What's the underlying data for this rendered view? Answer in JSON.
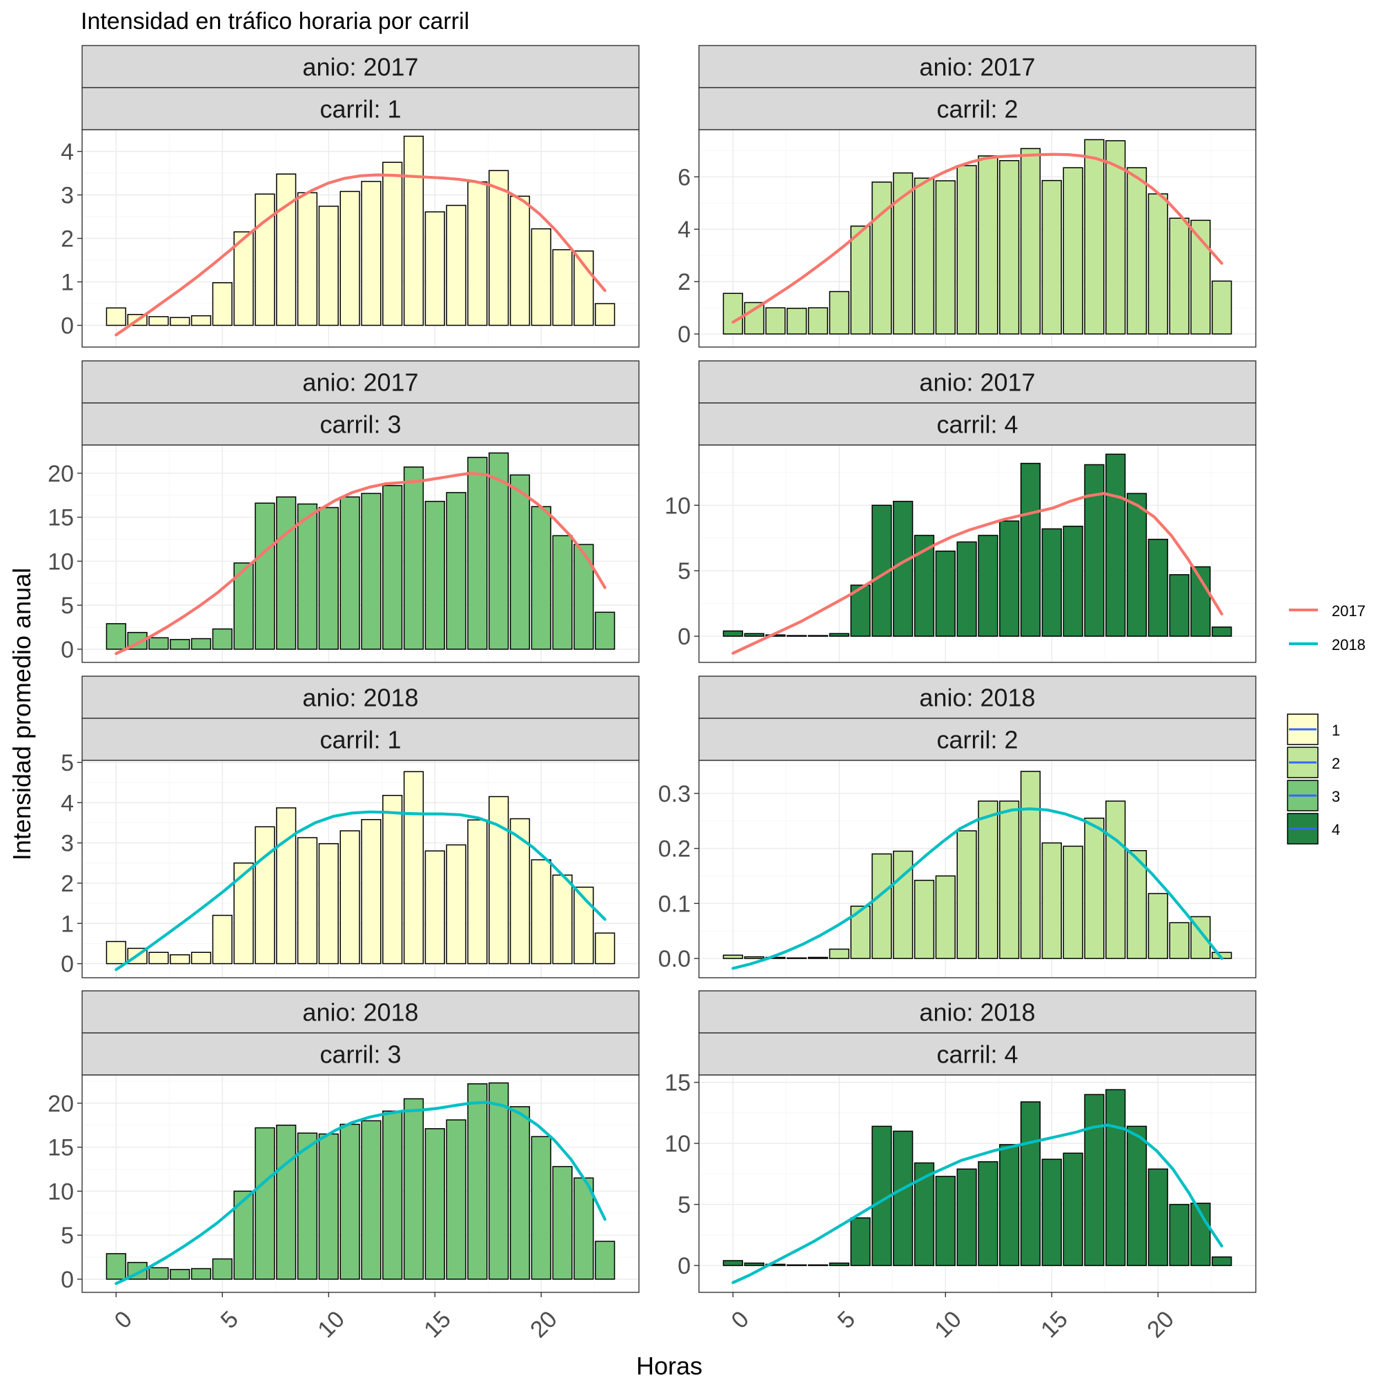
{
  "title": "Intensidad en tráfico horaria por carril",
  "xlabel": "Horas",
  "ylabel": "Intensidad promedio anual",
  "colors": {
    "fill": {
      "1": "#FFFFCC",
      "2": "#C2E699",
      "3": "#78C679",
      "4": "#238443"
    },
    "line": {
      "2017": "#F8766D",
      "2018": "#00BFC4"
    },
    "legend_fill_line": "#3366FF",
    "strip_bg": "#D9D9D9",
    "border": "#333333",
    "grid": "#EBEBEB"
  },
  "legend": {
    "line": {
      "entries": [
        "2017",
        "2018"
      ]
    },
    "fill": {
      "entries": [
        "1",
        "2",
        "3",
        "4"
      ]
    }
  },
  "chart_data": [
    {
      "type": "bar",
      "strip_top": "anio: 2017",
      "strip_bottom": "carril: 1",
      "carril": "1",
      "anio": "2017",
      "x": [
        0,
        1,
        2,
        3,
        4,
        5,
        6,
        7,
        8,
        9,
        10,
        11,
        12,
        13,
        14,
        15,
        16,
        17,
        18,
        19,
        20,
        21,
        22,
        23
      ],
      "values": [
        0.4,
        0.25,
        0.2,
        0.18,
        0.22,
        0.98,
        2.15,
        3.02,
        3.48,
        3.05,
        2.74,
        3.08,
        3.31,
        3.75,
        4.35,
        2.61,
        2.76,
        3.3,
        3.56,
        2.97,
        2.22,
        1.74,
        1.71,
        0.5
      ],
      "smooth": [
        -0.22,
        0.04,
        0.3,
        0.57,
        0.84,
        1.12,
        1.42,
        1.73,
        2.05,
        2.36,
        2.64,
        2.89,
        3.1,
        3.27,
        3.38,
        3.44,
        3.46,
        3.45,
        3.43,
        3.41,
        3.39,
        3.36,
        3.31,
        3.22,
        3.08,
        2.86,
        2.56,
        2.18,
        1.73,
        1.25,
        0.8
      ],
      "smooth_x": [
        0,
        0.77,
        1.53,
        2.3,
        3.07,
        3.83,
        4.6,
        5.37,
        6.13,
        6.9,
        7.67,
        8.43,
        9.2,
        9.97,
        10.73,
        11.5,
        12.27,
        13.03,
        13.8,
        14.57,
        15.33,
        16.1,
        16.87,
        17.63,
        18.4,
        19.17,
        19.93,
        20.7,
        21.47,
        22.23,
        23
      ],
      "smooth_series": "2017",
      "ylim": [
        -0.5,
        4.5
      ],
      "yticks": [
        0,
        1,
        2,
        3,
        4
      ],
      "ytick_labels": [
        "0",
        "1",
        "2",
        "3",
        "4"
      ]
    },
    {
      "type": "bar",
      "strip_top": "anio: 2017",
      "strip_bottom": "carril: 2",
      "carril": "2",
      "anio": "2017",
      "x": [
        0,
        1,
        2,
        3,
        4,
        5,
        6,
        7,
        8,
        9,
        10,
        11,
        12,
        13,
        14,
        15,
        16,
        17,
        18,
        19,
        20,
        21,
        22,
        23
      ],
      "values": [
        1.55,
        1.2,
        1.0,
        0.98,
        1.0,
        1.62,
        4.12,
        5.8,
        6.15,
        5.95,
        5.85,
        6.43,
        6.8,
        6.62,
        7.08,
        5.86,
        6.35,
        7.42,
        7.38,
        6.35,
        5.35,
        4.42,
        4.34,
        2.02
      ],
      "smooth": [
        0.45,
        0.77,
        1.1,
        1.45,
        1.8,
        2.17,
        2.56,
        2.96,
        3.38,
        3.83,
        4.3,
        4.76,
        5.18,
        5.56,
        5.88,
        6.15,
        6.38,
        6.56,
        6.7,
        6.77,
        6.8,
        6.82,
        6.85,
        6.86,
        6.85,
        6.8,
        6.7,
        6.53,
        6.28,
        5.95,
        5.58,
        5.12,
        4.55,
        3.9,
        3.3,
        2.7
      ],
      "smooth_x": [
        0,
        0.66,
        1.31,
        1.97,
        2.63,
        3.29,
        3.94,
        4.6,
        5.26,
        5.91,
        6.57,
        7.23,
        7.89,
        8.54,
        9.2,
        9.86,
        10.51,
        11.17,
        11.83,
        12.49,
        13.14,
        13.8,
        14.46,
        15.11,
        15.77,
        16.43,
        17.09,
        17.74,
        18.4,
        19.06,
        19.71,
        20.37,
        21.03,
        21.69,
        22.34,
        23
      ],
      "smooth_series": "2017",
      "ylim": [
        -0.5,
        7.8
      ],
      "yticks": [
        0,
        2,
        4,
        6
      ],
      "ytick_labels": [
        "0",
        "2",
        "4",
        "6"
      ]
    },
    {
      "type": "bar",
      "strip_top": "anio: 2017",
      "strip_bottom": "carril: 3",
      "carril": "3",
      "anio": "2017",
      "x": [
        0,
        1,
        2,
        3,
        4,
        5,
        6,
        7,
        8,
        9,
        10,
        11,
        12,
        13,
        14,
        15,
        16,
        17,
        18,
        19,
        20,
        21,
        22,
        23
      ],
      "values": [
        2.9,
        1.9,
        1.3,
        1.1,
        1.2,
        2.3,
        9.8,
        16.6,
        17.3,
        16.5,
        16.1,
        17.3,
        17.7,
        18.6,
        20.7,
        16.8,
        17.8,
        21.8,
        22.3,
        19.8,
        16.2,
        12.9,
        11.9,
        4.2
      ],
      "smooth": [
        -0.5,
        0.4,
        1.4,
        2.5,
        3.7,
        5.0,
        6.4,
        8.0,
        9.7,
        11.4,
        13.0,
        14.5,
        15.8,
        16.9,
        17.8,
        18.4,
        18.8,
        18.95,
        19.1,
        19.4,
        19.7,
        20.0,
        19.8,
        19.0,
        17.9,
        16.5,
        14.8,
        12.8,
        10.2,
        7.0
      ],
      "smooth_x": [
        0,
        0.79,
        1.59,
        2.38,
        3.17,
        3.97,
        4.76,
        5.55,
        6.34,
        7.14,
        7.93,
        8.72,
        9.52,
        10.31,
        11.1,
        11.9,
        12.69,
        13.48,
        14.28,
        15.07,
        15.86,
        16.66,
        17.45,
        18.24,
        19.03,
        19.83,
        20.62,
        21.41,
        22.21,
        23
      ],
      "smooth_series": "2017",
      "ylim": [
        -1.5,
        23.2
      ],
      "yticks": [
        0,
        5,
        10,
        15,
        20
      ],
      "ytick_labels": [
        "0",
        "5",
        "10",
        "15",
        "20"
      ]
    },
    {
      "type": "bar",
      "strip_top": "anio: 2017",
      "strip_bottom": "carril: 4",
      "carril": "4",
      "anio": "2017",
      "x": [
        0,
        1,
        2,
        3,
        4,
        5,
        6,
        7,
        8,
        9,
        10,
        11,
        12,
        13,
        14,
        15,
        16,
        17,
        18,
        19,
        20,
        21,
        22,
        23
      ],
      "values": [
        0.4,
        0.2,
        0.1,
        0.05,
        0.05,
        0.2,
        3.9,
        10.0,
        10.3,
        7.7,
        6.5,
        7.2,
        7.7,
        8.8,
        13.2,
        8.2,
        8.4,
        13.1,
        13.9,
        10.9,
        7.4,
        4.7,
        5.3,
        0.7
      ],
      "smooth": [
        -1.3,
        -0.7,
        -0.1,
        0.5,
        1.1,
        1.8,
        2.5,
        3.2,
        4.0,
        4.8,
        5.6,
        6.3,
        7.0,
        7.6,
        8.1,
        8.5,
        8.9,
        9.2,
        9.5,
        9.8,
        10.3,
        10.7,
        10.9,
        10.6,
        10.0,
        9.1,
        7.7,
        5.9,
        3.8,
        1.7
      ],
      "smooth_x": [
        0,
        0.79,
        1.59,
        2.38,
        3.17,
        3.97,
        4.76,
        5.55,
        6.34,
        7.14,
        7.93,
        8.72,
        9.52,
        10.31,
        11.1,
        11.9,
        12.69,
        13.48,
        14.28,
        15.07,
        15.86,
        16.66,
        17.45,
        18.24,
        19.03,
        19.83,
        20.62,
        21.41,
        22.21,
        23
      ],
      "smooth_series": "2017",
      "ylim": [
        -2.0,
        14.6
      ],
      "yticks": [
        0,
        5,
        10
      ],
      "ytick_labels": [
        "0",
        "5",
        "10"
      ]
    },
    {
      "type": "bar",
      "strip_top": "anio: 2018",
      "strip_bottom": "carril: 1",
      "carril": "1",
      "anio": "2018",
      "x": [
        0,
        1,
        2,
        3,
        4,
        5,
        6,
        7,
        8,
        9,
        10,
        11,
        12,
        13,
        14,
        15,
        16,
        17,
        18,
        19,
        20,
        21,
        22,
        23
      ],
      "values": [
        0.55,
        0.38,
        0.28,
        0.22,
        0.28,
        1.2,
        2.5,
        3.4,
        3.87,
        3.13,
        2.98,
        3.3,
        3.58,
        4.18,
        4.77,
        2.8,
        2.95,
        3.57,
        4.15,
        3.6,
        2.58,
        2.2,
        1.9,
        0.76
      ],
      "smooth": [
        -0.15,
        0.15,
        0.47,
        0.8,
        1.13,
        1.47,
        1.82,
        2.2,
        2.58,
        2.94,
        3.26,
        3.5,
        3.66,
        3.74,
        3.77,
        3.76,
        3.73,
        3.72,
        3.72,
        3.7,
        3.62,
        3.46,
        3.22,
        2.9,
        2.5,
        2.04,
        1.55,
        1.1
      ],
      "smooth_x": [
        0,
        0.85,
        1.7,
        2.56,
        3.41,
        4.26,
        5.11,
        5.96,
        6.81,
        7.67,
        8.52,
        9.37,
        10.22,
        11.07,
        11.93,
        12.78,
        13.63,
        14.48,
        15.33,
        16.19,
        17.04,
        17.89,
        18.74,
        19.59,
        20.44,
        21.3,
        22.15,
        23
      ],
      "smooth_series": "2018",
      "ylim": [
        -0.35,
        5.05
      ],
      "yticks": [
        0,
        1,
        2,
        3,
        4,
        5
      ],
      "ytick_labels": [
        "0",
        "1",
        "2",
        "3",
        "4",
        "5"
      ]
    },
    {
      "type": "bar",
      "strip_top": "anio: 2018",
      "strip_bottom": "carril: 2",
      "carril": "2",
      "anio": "2018",
      "x": [
        0,
        1,
        2,
        3,
        4,
        5,
        6,
        7,
        8,
        9,
        10,
        11,
        12,
        13,
        14,
        15,
        16,
        17,
        18,
        19,
        20,
        21,
        22,
        23
      ],
      "values": [
        0.006,
        0.003,
        0.002,
        0.001,
        0.002,
        0.017,
        0.095,
        0.19,
        0.195,
        0.142,
        0.15,
        0.232,
        0.286,
        0.286,
        0.34,
        0.21,
        0.204,
        0.255,
        0.286,
        0.196,
        0.118,
        0.065,
        0.076,
        0.011
      ],
      "smooth": [
        -0.018,
        -0.01,
        0.0,
        0.012,
        0.026,
        0.042,
        0.06,
        0.08,
        0.104,
        0.13,
        0.158,
        0.186,
        0.212,
        0.236,
        0.252,
        0.262,
        0.27,
        0.272,
        0.27,
        0.263,
        0.252,
        0.236,
        0.214,
        0.186,
        0.154,
        0.118,
        0.08,
        0.04,
        0.0
      ],
      "smooth_x": [
        0,
        0.82,
        1.64,
        2.46,
        3.29,
        4.11,
        4.93,
        5.75,
        6.57,
        7.39,
        8.21,
        9.04,
        9.86,
        10.68,
        11.5,
        12.32,
        13.14,
        13.96,
        14.79,
        15.61,
        16.43,
        17.25,
        18.07,
        18.89,
        19.71,
        20.54,
        21.36,
        22.18,
        23
      ],
      "smooth_series": "2018",
      "ylim": [
        -0.035,
        0.36
      ],
      "yticks": [
        0,
        0.1,
        0.2,
        0.3
      ],
      "ytick_labels": [
        "0.0",
        "0.1",
        "0.2",
        "0.3"
      ]
    },
    {
      "type": "bar",
      "strip_top": "anio: 2018",
      "strip_bottom": "carril: 3",
      "carril": "3",
      "anio": "2018",
      "x": [
        0,
        1,
        2,
        3,
        4,
        5,
        6,
        7,
        8,
        9,
        10,
        11,
        12,
        13,
        14,
        15,
        16,
        17,
        18,
        19,
        20,
        21,
        22,
        23
      ],
      "values": [
        2.9,
        1.9,
        1.3,
        1.1,
        1.2,
        2.3,
        10.0,
        17.2,
        17.5,
        16.6,
        16.5,
        17.6,
        18.0,
        19.1,
        20.5,
        17.1,
        18.1,
        22.2,
        22.3,
        19.6,
        16.2,
        12.8,
        11.5,
        4.3
      ],
      "smooth": [
        -0.5,
        0.4,
        1.4,
        2.5,
        3.7,
        5.0,
        6.4,
        8.0,
        9.7,
        11.4,
        13.0,
        14.5,
        15.8,
        16.9,
        17.8,
        18.4,
        18.8,
        19.1,
        19.2,
        19.4,
        19.7,
        20.0,
        20.1,
        19.7,
        18.8,
        17.5,
        15.8,
        13.6,
        10.7,
        6.8
      ],
      "smooth_x": [
        0,
        0.79,
        1.59,
        2.38,
        3.17,
        3.97,
        4.76,
        5.55,
        6.34,
        7.14,
        7.93,
        8.72,
        9.52,
        10.31,
        11.1,
        11.9,
        12.69,
        13.48,
        14.28,
        15.07,
        15.86,
        16.66,
        17.45,
        18.24,
        19.03,
        19.83,
        20.62,
        21.41,
        22.21,
        23
      ],
      "smooth_series": "2018",
      "ylim": [
        -1.5,
        23.2
      ],
      "yticks": [
        0,
        5,
        10,
        15,
        20
      ],
      "ytick_labels": [
        "0",
        "5",
        "10",
        "15",
        "20"
      ]
    },
    {
      "type": "bar",
      "strip_top": "anio: 2018",
      "strip_bottom": "carril: 4",
      "carril": "4",
      "anio": "2018",
      "x": [
        0,
        1,
        2,
        3,
        4,
        5,
        6,
        7,
        8,
        9,
        10,
        11,
        12,
        13,
        14,
        15,
        16,
        17,
        18,
        19,
        20,
        21,
        22,
        23
      ],
      "values": [
        0.4,
        0.2,
        0.1,
        0.05,
        0.05,
        0.2,
        3.9,
        11.4,
        11.0,
        8.4,
        7.3,
        7.9,
        8.5,
        9.9,
        13.4,
        8.7,
        9.2,
        14.0,
        14.4,
        11.4,
        7.9,
        5.0,
        5.1,
        0.7
      ],
      "smooth": [
        -1.4,
        -0.8,
        -0.1,
        0.6,
        1.3,
        2.0,
        2.8,
        3.6,
        4.4,
        5.2,
        6.0,
        6.7,
        7.4,
        8.0,
        8.6,
        9.0,
        9.4,
        9.7,
        10.0,
        10.3,
        10.6,
        10.9,
        11.3,
        11.5,
        11.2,
        10.5,
        9.4,
        7.9,
        5.9,
        3.6,
        1.6
      ],
      "smooth_x": [
        0,
        0.77,
        1.53,
        2.3,
        3.07,
        3.83,
        4.6,
        5.37,
        6.13,
        6.9,
        7.67,
        8.43,
        9.2,
        9.97,
        10.73,
        11.5,
        12.27,
        13.03,
        13.8,
        14.57,
        15.33,
        16.1,
        16.87,
        17.63,
        18.4,
        19.17,
        19.93,
        20.7,
        21.47,
        22.23,
        23
      ],
      "smooth_series": "2018",
      "ylim": [
        -2.2,
        15.6
      ],
      "yticks": [
        0,
        5,
        10,
        15
      ],
      "ytick_labels": [
        "0",
        "5",
        "10",
        "15"
      ]
    }
  ],
  "x_axis": {
    "xlim": [
      -1.6,
      24.6
    ],
    "ticks": [
      0,
      5,
      10,
      15,
      20
    ],
    "tick_labels": [
      "0",
      "5",
      "10",
      "15",
      "20"
    ]
  }
}
